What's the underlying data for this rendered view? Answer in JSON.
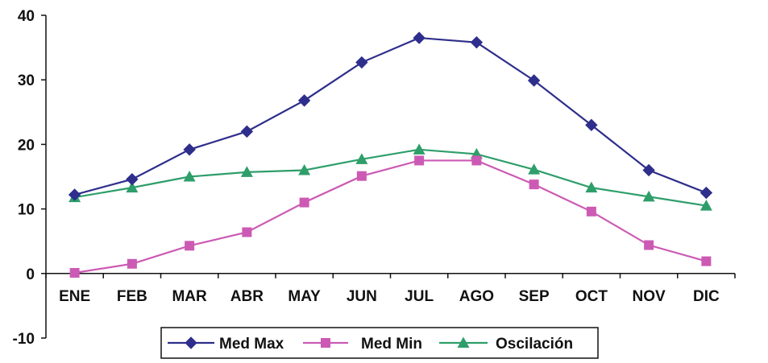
{
  "chart_data": {
    "type": "line",
    "title": "",
    "xlabel": "",
    "ylabel": "",
    "categories": [
      "ENE",
      "FEB",
      "MAR",
      "ABR",
      "MAY",
      "JUN",
      "JUL",
      "AGO",
      "SEP",
      "OCT",
      "NOV",
      "DIC"
    ],
    "ylim": [
      -10,
      40
    ],
    "yticks": [
      -10,
      0,
      10,
      20,
      30,
      40
    ],
    "grid": false,
    "legend_position": "bottom",
    "series": [
      {
        "name": "Med Max",
        "marker": "diamond",
        "color": "#2e2e8c",
        "values": [
          12.2,
          14.6,
          19.2,
          22.0,
          26.8,
          32.7,
          36.5,
          35.8,
          29.9,
          23.0,
          16.0,
          12.5
        ]
      },
      {
        "name": "Med Min",
        "marker": "square",
        "color": "#cc5ab4",
        "values": [
          0.1,
          1.5,
          4.3,
          6.4,
          11.0,
          15.1,
          17.5,
          17.5,
          13.8,
          9.6,
          4.4,
          1.9
        ]
      },
      {
        "name": "Oscilación",
        "marker": "triangle",
        "color": "#2e9e6a",
        "values": [
          11.8,
          13.3,
          15.0,
          15.7,
          16.0,
          17.7,
          19.2,
          18.5,
          16.1,
          13.3,
          11.9,
          10.5
        ]
      }
    ]
  }
}
